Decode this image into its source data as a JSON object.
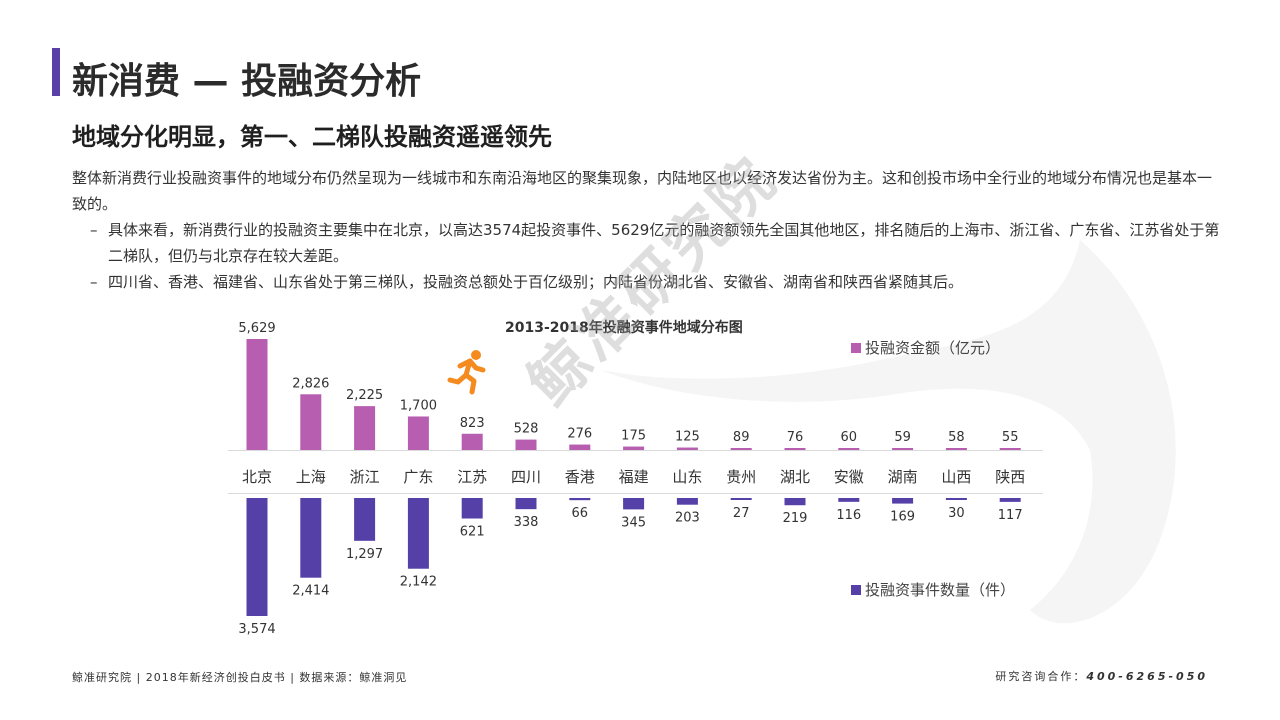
{
  "header": {
    "title": "新消费 — 投融资分析",
    "subtitle": "地域分化明显，第一、二梯队投融资遥遥领先"
  },
  "body": {
    "paragraph": "整体新消费行业投融资事件的地域分布仍然呈现为一线城市和东南沿海地区的聚集现象，内陆地区也以经济发达省份为主。这和创投市场中全行业的地域分布情况也是基本一致的。",
    "bullet_dash": "–",
    "bullets": [
      "具体来看，新消费行业的投融资主要集中在北京，以高达3574起投资事件、5629亿元的融资额领先全国其他地区，排名随后的上海市、浙江省、广东省、江苏省处于第二梯队，但仍与北京存在较大差距。",
      "四川省、香港、福建省、山东省处于第三梯队，投融资总额处于百亿级别；内陆省份湖北省、安徽省、湖南省和陕西省紧随其后。"
    ]
  },
  "watermark": "鲸准研究院",
  "chart_data": {
    "type": "bar",
    "title": "2013-2018年投融资事件地域分布图",
    "categories": [
      "北京",
      "上海",
      "浙江",
      "广东",
      "江苏",
      "四川",
      "香港",
      "福建",
      "山东",
      "贵州",
      "湖北",
      "安徽",
      "湖南",
      "山西",
      "陕西"
    ],
    "series": [
      {
        "name": "投融资金额（亿元）",
        "color": "#b75eb1",
        "direction": "up",
        "values": [
          5629,
          2826,
          2225,
          1700,
          823,
          528,
          276,
          175,
          125,
          89,
          76,
          60,
          59,
          58,
          55
        ],
        "labels": [
          "5,629",
          "2,826",
          "2,225",
          "1,700",
          "823",
          "528",
          "276",
          "175",
          "125",
          "89",
          "76",
          "60",
          "59",
          "58",
          "55"
        ]
      },
      {
        "name": "投融资事件数量（件）",
        "color": "#5540a8",
        "direction": "down",
        "values": [
          3574,
          2414,
          1297,
          2142,
          621,
          338,
          66,
          345,
          203,
          27,
          219,
          116,
          169,
          30,
          117
        ],
        "labels": [
          "3,574",
          "2,414",
          "1,297",
          "2,142",
          "621",
          "338",
          "66",
          "345",
          "203",
          "27",
          "219",
          "116",
          "169",
          "30",
          "117"
        ]
      }
    ]
  },
  "icons": {
    "runner": "running-person-icon",
    "runner_color": "#f58a1f"
  },
  "footer": {
    "left": "鲸准研究院 | 2018年新经济创投白皮书 | 数据来源：鲸准洞见",
    "right_label": "研究咨询合作：",
    "right_phone": "400-6265-050"
  }
}
